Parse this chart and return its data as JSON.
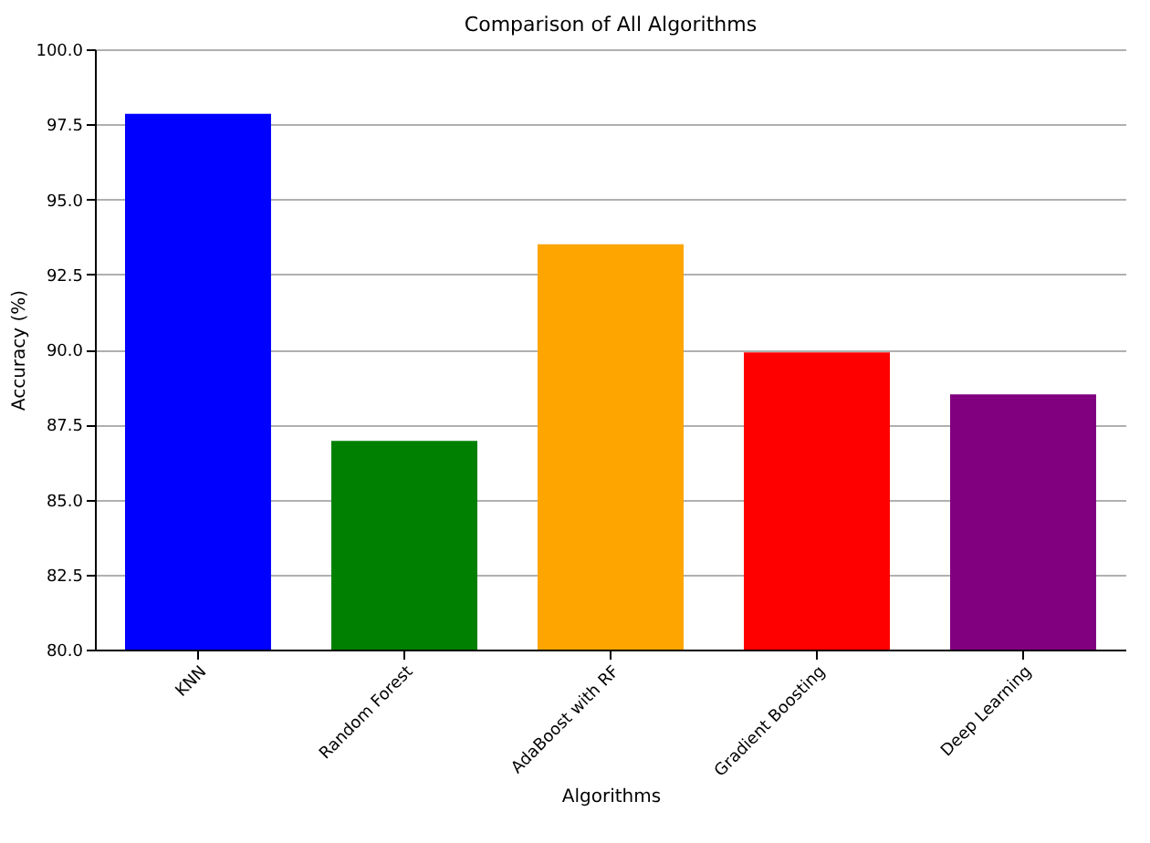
{
  "chart_data": {
    "type": "bar",
    "title": "Comparison of All Algorithms",
    "xlabel": "Algorithms",
    "ylabel": "Accuracy (%)",
    "categories": [
      "KNN",
      "Random Forest",
      "AdaBoost with RF",
      "Gradient Boosting",
      "Deep Learning"
    ],
    "values": [
      97.85,
      86.95,
      93.5,
      89.9,
      88.5
    ],
    "colors": [
      "#0000ff",
      "#008000",
      "#ffa500",
      "#ff0000",
      "#800080"
    ],
    "ylim": [
      80,
      100
    ],
    "yticks": [
      {
        "value": 80,
        "label": "80.0"
      },
      {
        "value": 82.5,
        "label": "82.5"
      },
      {
        "value": 85,
        "label": "85.0"
      },
      {
        "value": 87.5,
        "label": "87.5"
      },
      {
        "value": 90,
        "label": "90.0"
      },
      {
        "value": 92.5,
        "label": "92.5"
      },
      {
        "value": 95,
        "label": "95.0"
      },
      {
        "value": 97.5,
        "label": "97.5"
      },
      {
        "value": 100,
        "label": "100.0"
      }
    ],
    "grid": "y",
    "legend": false
  }
}
